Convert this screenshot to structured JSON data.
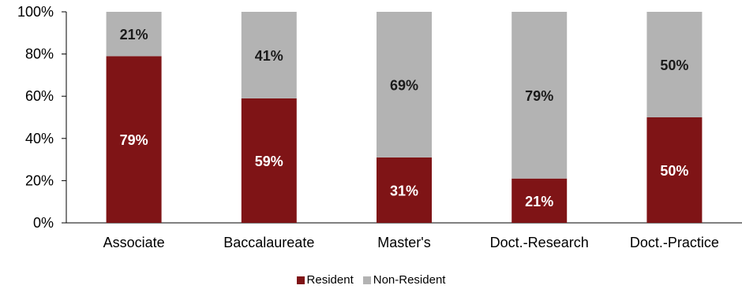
{
  "chart_data": {
    "type": "bar",
    "stacked": true,
    "categories": [
      "Associate",
      "Baccalaureate",
      "Master's",
      "Doct.-Research",
      "Doct.-Practice"
    ],
    "series": [
      {
        "name": "Resident",
        "values": [
          79,
          59,
          31,
          21,
          50
        ],
        "labels": [
          "79%",
          "59%",
          "31%",
          "21%",
          "50%"
        ],
        "color": "#7f1416",
        "label_color": "#ffffff"
      },
      {
        "name": "Non-Resident",
        "values": [
          21,
          41,
          69,
          79,
          50
        ],
        "labels": [
          "21%",
          "41%",
          "69%",
          "79%",
          "50%"
        ],
        "color": "#b3b3b3",
        "label_color": "#1a1a1a"
      }
    ],
    "ylim": [
      0,
      100
    ],
    "yticks": [
      "0%",
      "20%",
      "40%",
      "60%",
      "80%",
      "100%"
    ],
    "grid": false,
    "legend": "bottom-center"
  }
}
